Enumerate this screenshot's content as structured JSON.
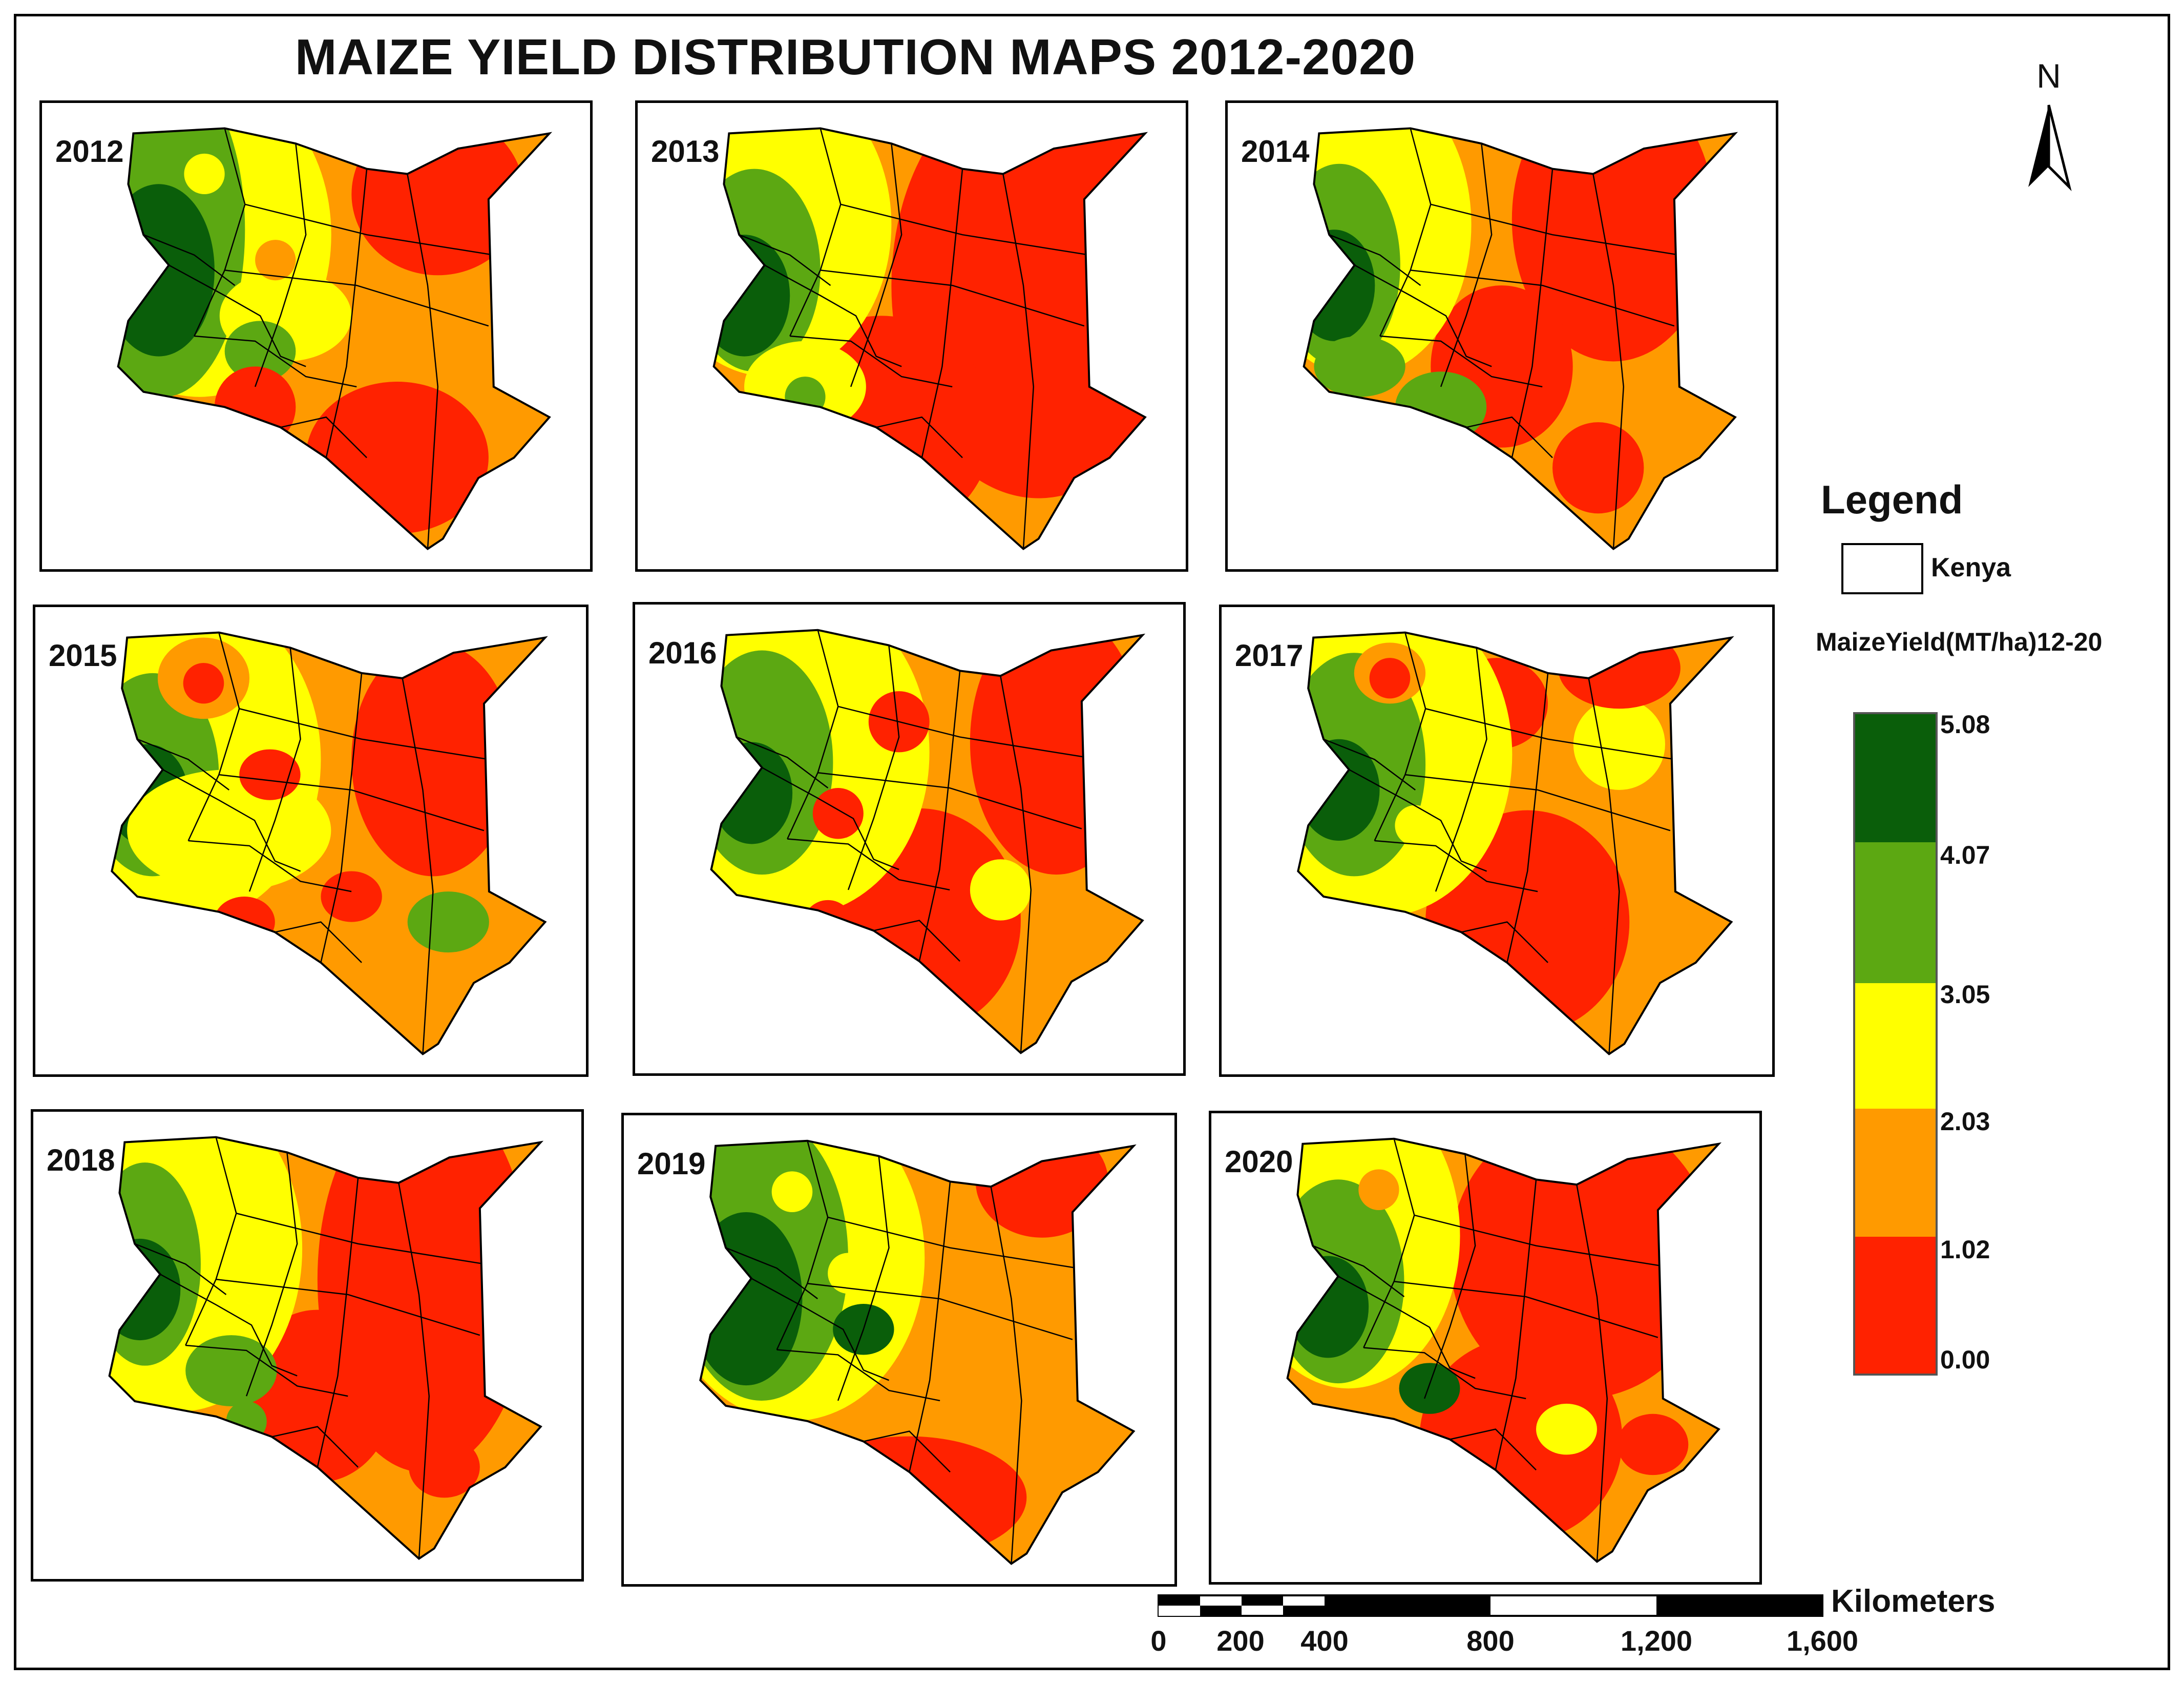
{
  "title": "MAIZE YIELD DISTRIBUTION  MAPS 2012-2020",
  "north_arrow": {
    "label": "N"
  },
  "legend": {
    "title": "Legend",
    "boundary_label": "Kenya",
    "field_label": "MaizeYield(MT/ha)12-20",
    "classes": [
      {
        "label": "5.08",
        "color": "#0a5e0a"
      },
      {
        "label": "4.07",
        "color": "#5ca812"
      },
      {
        "label": "3.05",
        "color": "#ffff00"
      },
      {
        "label": "2.03",
        "color": "#ff9a00"
      },
      {
        "label": "1.02",
        "color": "#ff2200"
      },
      {
        "label": "0.00",
        "color": ""
      }
    ]
  },
  "scale_bar": {
    "unit_label": "Kilometers",
    "ticks": [
      "0",
      "200",
      "400",
      "800",
      "1,200",
      "1,600"
    ]
  },
  "maps": [
    {
      "year": "2012"
    },
    {
      "year": "2013"
    },
    {
      "year": "2014"
    },
    {
      "year": "2015"
    },
    {
      "year": "2016"
    },
    {
      "year": "2017"
    },
    {
      "year": "2018"
    },
    {
      "year": "2019"
    },
    {
      "year": "2020"
    }
  ]
}
